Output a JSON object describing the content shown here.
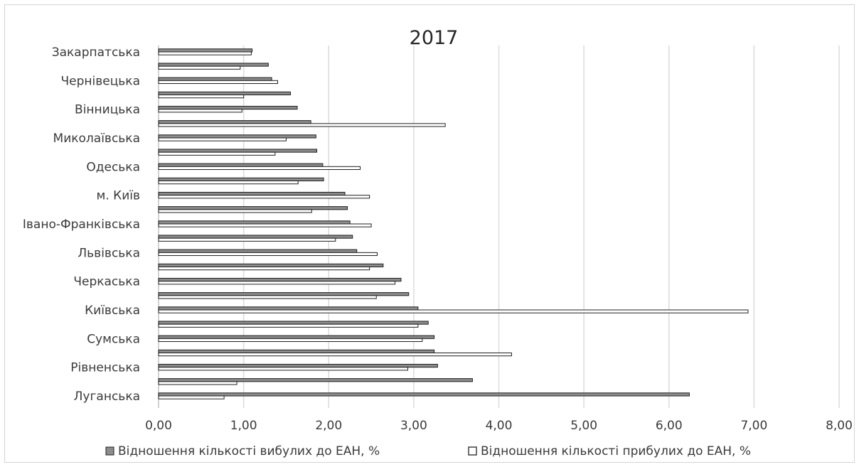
{
  "chart_data": {
    "type": "bar",
    "orientation": "horizontal",
    "title": "2017",
    "xlabel": "",
    "ylabel": "",
    "xlim": [
      0,
      8
    ],
    "x_ticks": [
      "0,00",
      "1,00",
      "2,00",
      "3,00",
      "4,00",
      "5,00",
      "6,00",
      "7,00",
      "8,00"
    ],
    "grid": true,
    "legend_position": "bottom",
    "categories": [
      "Закарпатська",
      "",
      "Чернівецька",
      "",
      "Вінницька",
      "",
      "Миколаївська",
      "",
      "Одеська",
      "",
      "м. Київ",
      "",
      "Івано-Франківська",
      "",
      "Львівська",
      "",
      "Черкаська",
      "",
      "Київська",
      "",
      "Сумська",
      "",
      "Рівненська",
      "",
      "Луганська"
    ],
    "series": [
      {
        "name": "Відношення кількості вибулих до ЕАН, %",
        "color": "#8c8c8c",
        "values": [
          1.1,
          1.29,
          1.33,
          1.55,
          1.63,
          1.79,
          1.85,
          1.86,
          1.93,
          1.94,
          2.19,
          2.22,
          2.25,
          2.28,
          2.33,
          2.64,
          2.85,
          2.94,
          3.05,
          3.17,
          3.24,
          3.24,
          3.28,
          3.69,
          6.24
        ]
      },
      {
        "name": "Відношення кількості прибулих до ЕАН, %",
        "color": "#ffffff",
        "values": [
          1.09,
          0.96,
          1.4,
          1.0,
          0.98,
          3.37,
          1.5,
          1.37,
          2.37,
          1.64,
          2.48,
          1.8,
          2.5,
          2.08,
          2.57,
          2.48,
          2.78,
          2.56,
          6.93,
          3.05,
          3.1,
          4.15,
          2.93,
          0.92,
          0.77
        ]
      }
    ]
  }
}
